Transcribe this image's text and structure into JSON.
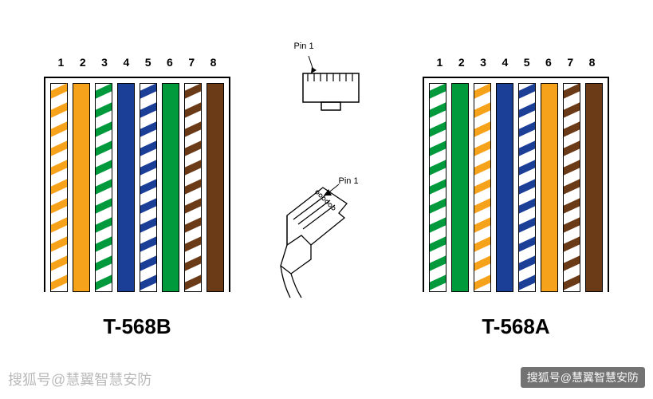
{
  "colors": {
    "orange": "#f6a21a",
    "green": "#009a3d",
    "blue": "#1b3f97",
    "brown": "#6b3a16",
    "white": "#ffffff",
    "black": "#000000"
  },
  "left_block": {
    "label": "T-568B",
    "label_fontsize": 26,
    "pins": [
      "1",
      "2",
      "3",
      "4",
      "5",
      "6",
      "7",
      "8"
    ],
    "wires": [
      {
        "type": "striped",
        "stripe_color": "#f6a21a"
      },
      {
        "type": "solid",
        "color": "#f6a21a"
      },
      {
        "type": "striped",
        "stripe_color": "#009a3d"
      },
      {
        "type": "solid",
        "color": "#1b3f97"
      },
      {
        "type": "striped",
        "stripe_color": "#1b3f97"
      },
      {
        "type": "solid",
        "color": "#009a3d"
      },
      {
        "type": "striped",
        "stripe_color": "#6b3a16"
      },
      {
        "type": "solid",
        "color": "#6b3a16"
      }
    ]
  },
  "right_block": {
    "label": "T-568A",
    "label_fontsize": 26,
    "pins": [
      "1",
      "2",
      "3",
      "4",
      "5",
      "6",
      "7",
      "8"
    ],
    "wires": [
      {
        "type": "striped",
        "stripe_color": "#009a3d"
      },
      {
        "type": "solid",
        "color": "#009a3d"
      },
      {
        "type": "striped",
        "stripe_color": "#f6a21a"
      },
      {
        "type": "solid",
        "color": "#1b3f97"
      },
      {
        "type": "striped",
        "stripe_color": "#1b3f97"
      },
      {
        "type": "solid",
        "color": "#f6a21a"
      },
      {
        "type": "striped",
        "stripe_color": "#6b3a16"
      },
      {
        "type": "solid",
        "color": "#6b3a16"
      }
    ]
  },
  "center": {
    "pin1_label": "Pin 1"
  },
  "watermark_left": "搜狐号@慧翼智慧安防",
  "watermark_right": "搜狐号@慧翼智慧安防"
}
